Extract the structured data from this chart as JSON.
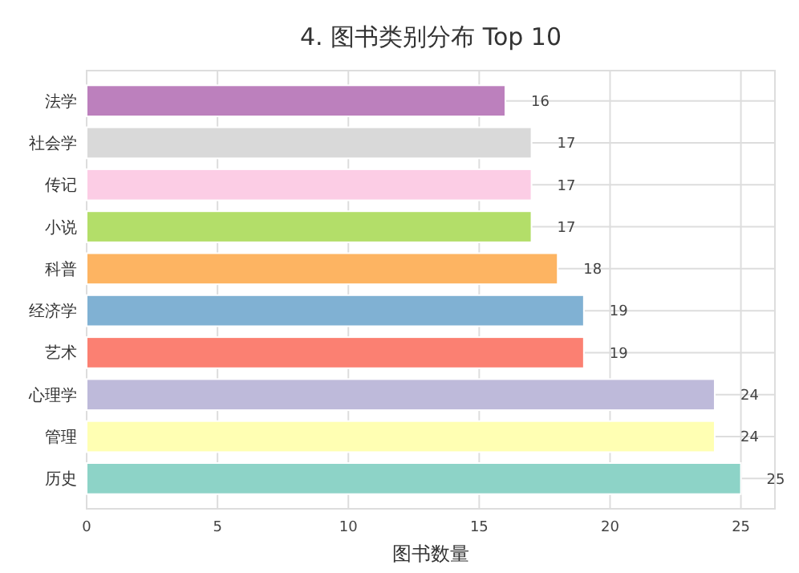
{
  "chart_data": {
    "type": "bar",
    "orientation": "horizontal",
    "title": "4. 图书类别分布 Top 10",
    "xlabel": "图书数量",
    "categories": [
      "法学",
      "社会学",
      "传记",
      "小说",
      "科普",
      "经济学",
      "艺术",
      "心理学",
      "管理",
      "历史"
    ],
    "values": [
      16,
      17,
      17,
      17,
      18,
      19,
      19,
      24,
      24,
      25
    ],
    "colors": [
      "#bc80bd",
      "#d9d9d9",
      "#fccde5",
      "#b3de69",
      "#fdb462",
      "#80b1d3",
      "#fb8072",
      "#bebada",
      "#ffffb3",
      "#8dd3c7"
    ],
    "xlim": [
      0,
      26.3
    ],
    "xticks": [
      0,
      5,
      10,
      15,
      20,
      25
    ],
    "grid": true,
    "data_labels": true
  }
}
